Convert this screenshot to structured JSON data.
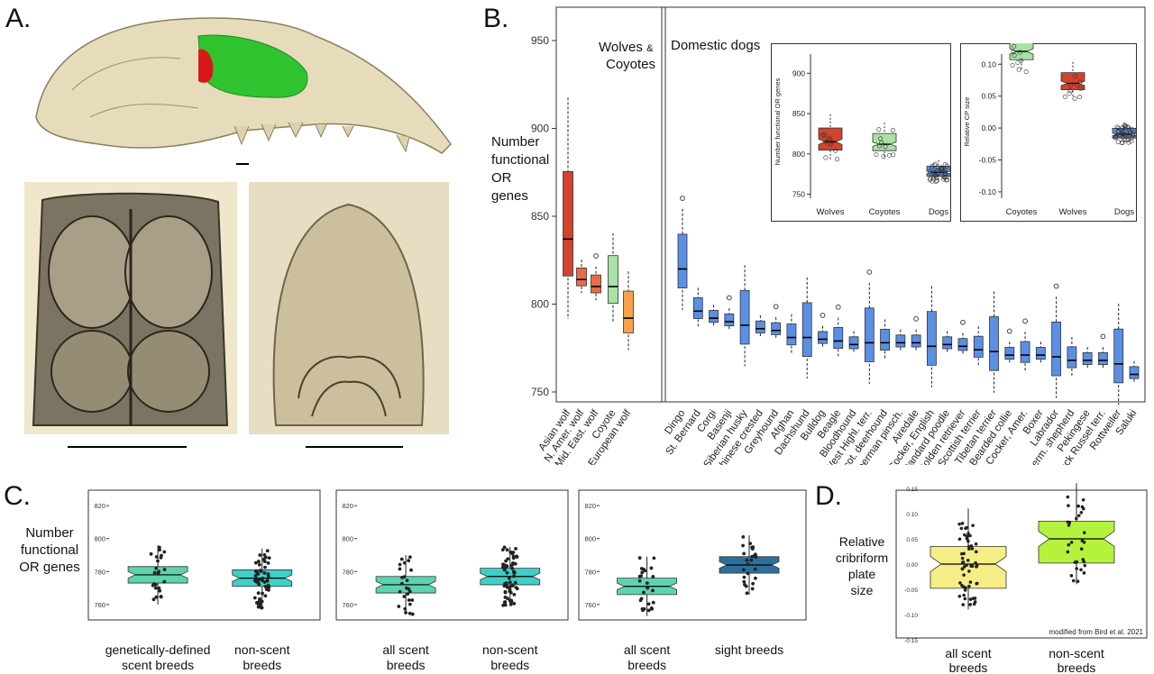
{
  "panels": {
    "a": "A.",
    "b": "B.",
    "c": "C.",
    "d": "D."
  },
  "colors": {
    "bone": "#e3d8b8",
    "boneDark": "#8c7f5e",
    "green": "#2fc42f",
    "red": "#d81818",
    "wolf": "#d2432c",
    "blue": "#5b8fe3",
    "teal": "#3fcfc8",
    "yellow": "#f5ee86",
    "lime": "#b5f23c"
  },
  "panelB": {
    "ylabel_lines": [
      "Number",
      "functional",
      "OR",
      "genes"
    ],
    "group_wolves_1": "Wolves",
    "group_wolves_amp": "&",
    "group_wolves_2": "Coyotes",
    "group_dogs": "Domestic dogs",
    "chart_data": {
      "type": "box",
      "ylim": [
        740,
        960
      ],
      "yticks": [
        750,
        800,
        850,
        900,
        950
      ],
      "categories": [
        "Asian wolf",
        "N. Amer. wolf",
        "Mid. East. wolf",
        "Coyote",
        "European wolf",
        "Dingo",
        "St. Bernard",
        "Corgi",
        "Basenji",
        "Siberian husky",
        "Chinese crested",
        "Greyhound",
        "Afghan",
        "Dachshund",
        "Bulldog",
        "Beagle",
        "Bloodhound",
        "West Highl. terr.",
        "Scot. deerhound",
        "Doberman pinsch.",
        "Airedale",
        "Cocker, English",
        "Standard poodle",
        "Golden retriever",
        "Scottish terrier",
        "Tibetan terrier",
        "Bearded collie",
        "Cocker, Amer.",
        "Boxer",
        "Labrador",
        "Germ. shepherd",
        "Pekingese",
        "Jack Russel terr.",
        "Rottweiler",
        "Saluki"
      ],
      "medians": [
        837,
        814,
        810,
        810,
        792,
        820,
        796,
        792,
        790,
        788,
        786,
        785,
        781,
        781,
        780,
        779,
        777,
        778,
        778,
        778,
        778,
        776,
        777,
        776,
        774,
        773,
        771,
        771,
        771,
        770,
        768,
        768,
        768,
        766,
        760
      ]
    }
  },
  "insetOR": {
    "ylabel": "Number functional OR genes",
    "chart_data": {
      "type": "box",
      "categories": [
        "Wolves",
        "Coyotes",
        "Dogs"
      ],
      "yticks": [
        750,
        800,
        850,
        900
      ],
      "ylim": [
        745,
        935
      ],
      "medians": [
        815,
        812,
        777
      ]
    }
  },
  "insetCP": {
    "ylabel": "Relative CP size",
    "chart_data": {
      "type": "box",
      "categories": [
        "Coyotes",
        "Wolves",
        "Dogs"
      ],
      "yticks": [
        "0.10",
        "0.05",
        "0.00",
        "-0.05",
        "-0.10"
      ],
      "ylim": [
        -0.11,
        0.13
      ],
      "medians": [
        0.12,
        0.07,
        -0.01
      ]
    }
  },
  "panelC": {
    "ylabel_lines": [
      "Number",
      "functional",
      "OR genes"
    ],
    "yticks": [
      "820",
      "800",
      "780",
      "760"
    ],
    "plots": [
      {
        "labels": [
          [
            "genetically-defined",
            "scent breeds"
          ],
          [
            "non-scent",
            "breeds"
          ]
        ]
      },
      {
        "labels": [
          [
            "all scent",
            "breeds"
          ],
          [
            "non-scent",
            "breeds"
          ]
        ]
      },
      {
        "labels": [
          [
            "all scent",
            "breeds"
          ],
          [
            "sight breeds",
            ""
          ]
        ]
      }
    ],
    "chart_data": {
      "type": "box",
      "medians": [
        [
          778,
          776
        ],
        [
          772,
          777
        ],
        [
          771,
          784
        ]
      ]
    }
  },
  "panelD": {
    "ylabel_lines": [
      "Relative",
      "cribriform",
      "plate",
      "size"
    ],
    "yticks": [
      "0.15",
      "0.10",
      "0.05",
      "0.00",
      "-0.05",
      "-0.10",
      "-0.15"
    ],
    "labels": [
      [
        "all scent",
        "breeds"
      ],
      [
        "non-scent",
        "breeds"
      ]
    ],
    "credit": "modified from Bird et al. 2021",
    "chart_data": {
      "type": "box",
      "medians": [
        0.0,
        0.05
      ]
    }
  }
}
